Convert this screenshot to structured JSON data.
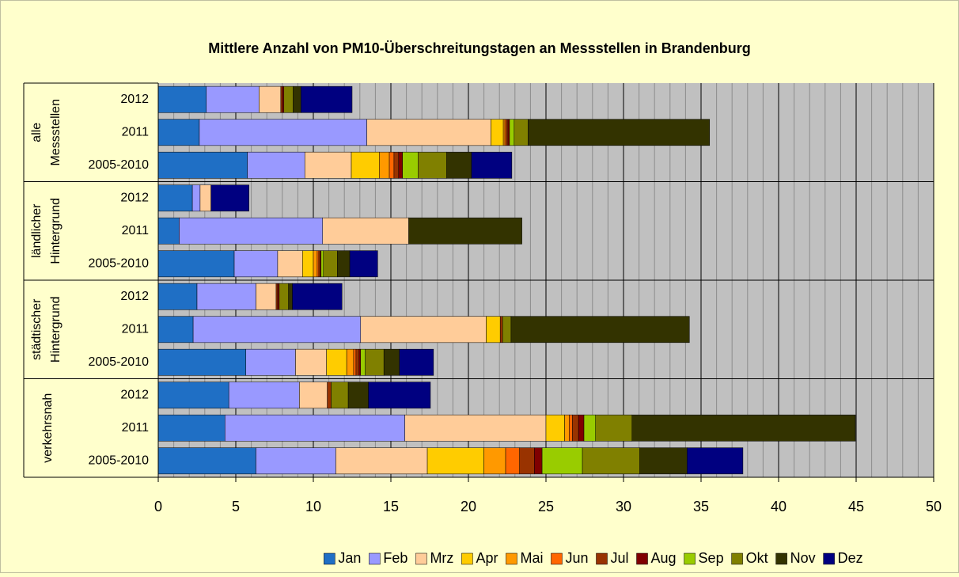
{
  "chart_data": {
    "type": "stacked_barh",
    "title": "Mittlere Anzahl von PM10-Überschreitungstagen an Messstellen in Brandenburg",
    "categories": [
      "2012",
      "2011",
      "2005-2010",
      "2012",
      "2011",
      "2005-2010",
      "2012",
      "2011",
      "2005-2010",
      "2012",
      "2011",
      "2005-2010"
    ],
    "groups": [
      {
        "label": [
          "alle",
          "Messstellen"
        ],
        "size": 3
      },
      {
        "label": [
          "ländlicher",
          "Hintergrund"
        ],
        "size": 3
      },
      {
        "label": [
          "städtischer",
          "Hintergrund"
        ],
        "size": 3
      },
      {
        "label": [
          "verkehrsnah"
        ],
        "size": 3
      }
    ],
    "series": [
      {
        "name": "Jan",
        "color": "#1f6fc5",
        "values": [
          3.1,
          2.65,
          5.75,
          2.2,
          1.35,
          4.9,
          2.5,
          2.25,
          5.65,
          4.55,
          4.3,
          6.3
        ]
      },
      {
        "name": "Feb",
        "color": "#9999ff",
        "values": [
          3.4,
          10.8,
          3.7,
          0.5,
          9.25,
          2.8,
          3.8,
          10.8,
          3.2,
          4.55,
          11.6,
          5.15
        ]
      },
      {
        "name": "Mrz",
        "color": "#ffcc99",
        "values": [
          1.4,
          8.0,
          3.0,
          0.7,
          5.55,
          1.6,
          1.3,
          8.1,
          2.0,
          1.8,
          9.1,
          5.9
        ]
      },
      {
        "name": "Apr",
        "color": "#ffcc00",
        "values": [
          0,
          0.8,
          1.8,
          0,
          0,
          0.7,
          0,
          0.9,
          1.3,
          0,
          1.2,
          3.65
        ]
      },
      {
        "name": "Mai",
        "color": "#ff9900",
        "values": [
          0,
          0.1,
          0.65,
          0,
          0,
          0.25,
          0,
          0,
          0.45,
          0,
          0.3,
          1.4
        ]
      },
      {
        "name": "Jun",
        "color": "#ff6600",
        "values": [
          0,
          0.1,
          0.3,
          0,
          0,
          0.1,
          0,
          0,
          0.15,
          0,
          0.2,
          0.9
        ]
      },
      {
        "name": "Jul",
        "color": "#993300",
        "values": [
          0.1,
          0.1,
          0.3,
          0,
          0,
          0.1,
          0.1,
          0.15,
          0.2,
          0.25,
          0.4,
          0.95
        ]
      },
      {
        "name": "Aug",
        "color": "#800000",
        "values": [
          0.1,
          0.1,
          0.25,
          0,
          0,
          0.05,
          0.1,
          0,
          0.1,
          0,
          0.35,
          0.5
        ]
      },
      {
        "name": "Sep",
        "color": "#99cc00",
        "values": [
          0,
          0.3,
          1.0,
          0,
          0,
          0.15,
          0,
          0,
          0.3,
          0,
          0.75,
          2.6
        ]
      },
      {
        "name": "Okt",
        "color": "#808000",
        "values": [
          0.6,
          0.9,
          1.85,
          0,
          0,
          0.9,
          0.6,
          0.55,
          1.2,
          1.1,
          2.35,
          3.7
        ]
      },
      {
        "name": "Nov",
        "color": "#333300",
        "values": [
          0.5,
          11.7,
          1.6,
          0,
          7.3,
          0.8,
          0.25,
          11.5,
          1.0,
          1.3,
          14.4,
          3.05
        ]
      },
      {
        "name": "Dez",
        "color": "#000080",
        "values": [
          3.3,
          0,
          2.6,
          2.45,
          0,
          1.8,
          3.2,
          0,
          2.2,
          4.0,
          0,
          3.6
        ]
      }
    ],
    "xlim": [
      0,
      50
    ],
    "xticks": [
      0,
      5,
      10,
      15,
      20,
      25,
      30,
      35,
      40,
      45,
      50
    ],
    "minor_xticks": [
      1,
      2,
      3,
      4,
      6,
      7,
      8,
      9,
      11,
      12,
      13,
      14,
      16,
      17,
      18,
      19,
      21,
      22,
      23,
      24,
      26,
      27,
      28,
      29,
      31,
      32,
      33,
      34,
      36,
      37,
      38,
      39,
      41,
      42,
      43,
      44,
      46,
      47,
      48,
      49
    ],
    "grid": true,
    "legend": "bottom"
  }
}
